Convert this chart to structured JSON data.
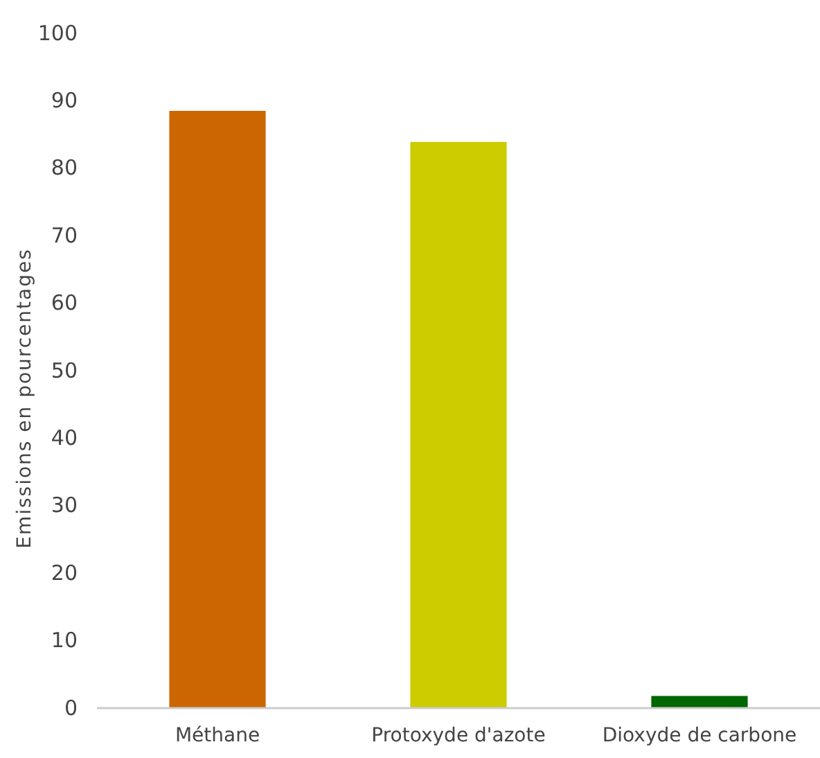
{
  "chart_data": {
    "type": "bar",
    "ylabel": "Emissions en pourcentages",
    "categories": [
      "Méthane",
      "Protoxyde d'azote",
      "Dioxyde de carbone"
    ],
    "values": [
      88.5,
      83.9,
      1.8
    ],
    "colors": [
      "#cc6600",
      "#cccc00",
      "#006600"
    ],
    "ylim": [
      0,
      100
    ],
    "yticks": [
      0,
      10,
      20,
      30,
      40,
      50,
      60,
      70,
      80,
      90,
      100
    ],
    "grid": false
  }
}
